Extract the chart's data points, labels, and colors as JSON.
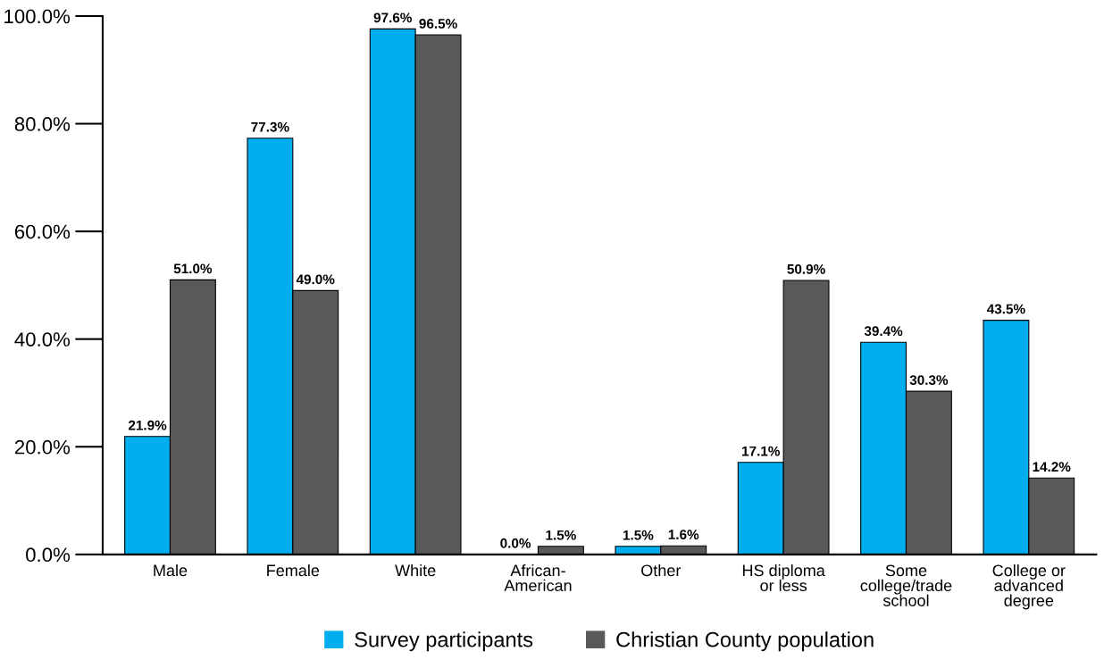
{
  "chart_data": {
    "type": "bar",
    "categories": [
      "Male",
      "Female",
      "White",
      "African-\nAmerican",
      "Other",
      "HS diploma\nor less",
      "Some\ncollege/trade\nschool",
      "College or\nadvanced\ndegree"
    ],
    "series": [
      {
        "name": "Survey participants",
        "color": "#00aeef",
        "values": [
          21.9,
          77.3,
          97.6,
          0.0,
          1.5,
          17.1,
          39.4,
          43.5
        ],
        "value_labels": [
          "21.9%",
          "77.3%",
          "97.6%",
          "0.0%",
          "1.5%",
          "17.1%",
          "39.4%",
          "43.5%"
        ]
      },
      {
        "name": "Christian County population",
        "color": "#58595b",
        "values": [
          51.0,
          49.0,
          96.5,
          1.5,
          1.6,
          50.9,
          30.3,
          14.2
        ],
        "value_labels": [
          "51.0%",
          "49.0%",
          "96.5%",
          "1.5%",
          "1.6%",
          "50.9%",
          "30.3%",
          "14.2%"
        ]
      }
    ],
    "ylim": [
      0,
      100
    ],
    "yticks": [
      {
        "value": 0,
        "label": "0.0%"
      },
      {
        "value": 20,
        "label": "20.0%"
      },
      {
        "value": 40,
        "label": "40.0%"
      },
      {
        "value": 60,
        "label": "60.0%"
      },
      {
        "value": 80,
        "label": "80.0%"
      },
      {
        "value": 100,
        "label": "100.0%"
      }
    ],
    "grid": false,
    "legend": "bottom"
  }
}
